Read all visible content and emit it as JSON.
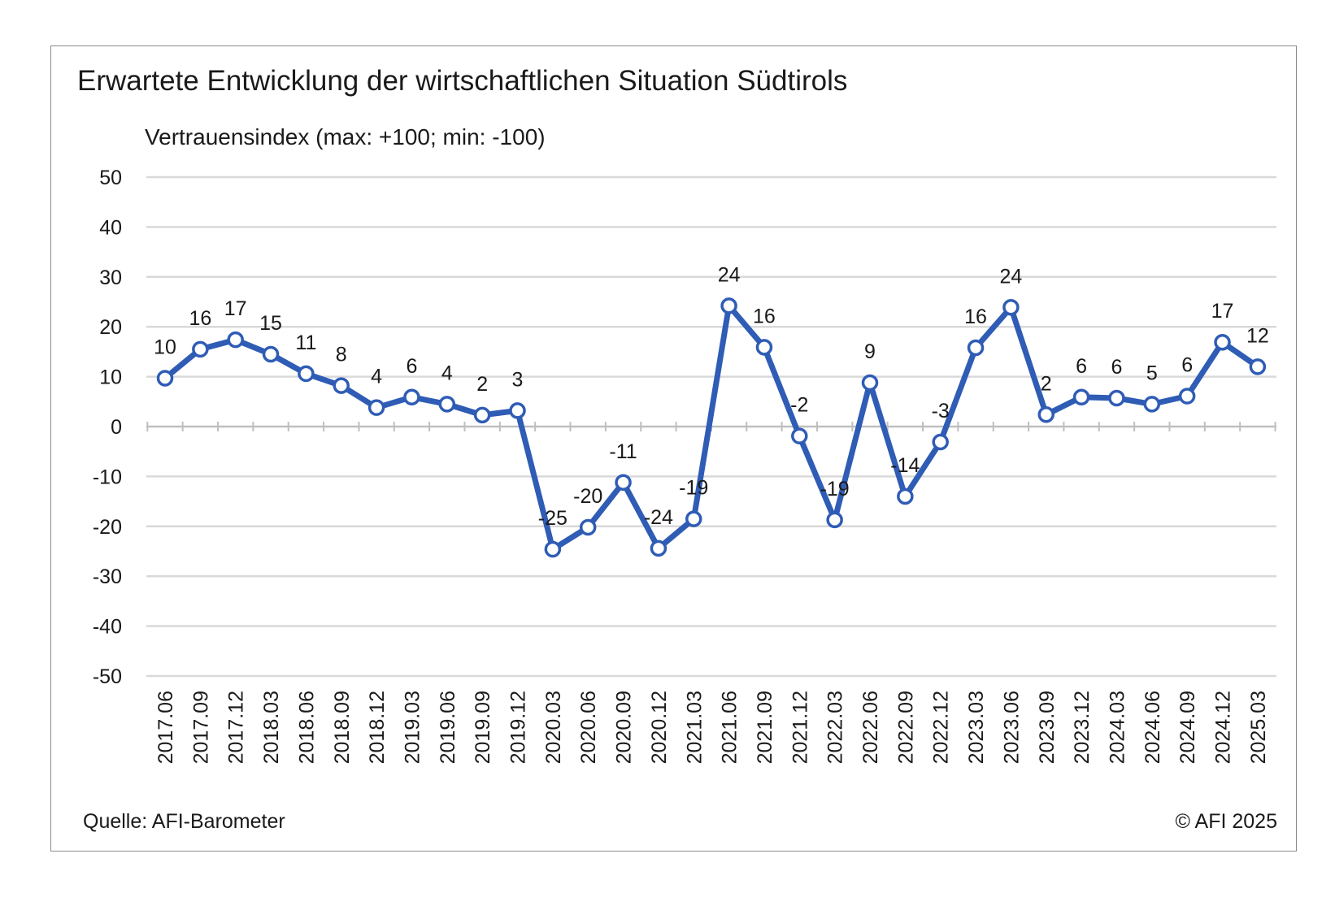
{
  "title": "Erwartete Entwicklung der wirtschaftlichen Situation Südtirols",
  "source": "Quelle: AFI-Barometer",
  "copyright": "© AFI 2025",
  "colors": {
    "line": "#2f5cb5",
    "grid": "#d9d9d9",
    "axis": "#bfbfbf",
    "marker_fill": "#ffffff"
  },
  "chart_data": {
    "type": "line",
    "title": "Erwartete Entwicklung der wirtschaftlichen Situation Südtirols",
    "ylabel": "Vertrauensindex (max: +100; min: -100)",
    "xlabel": "",
    "ylim": [
      -50,
      50
    ],
    "yticks": [
      50,
      40,
      30,
      20,
      10,
      0,
      -10,
      -20,
      -30,
      -40,
      -50
    ],
    "grid": true,
    "legend": "none",
    "categories": [
      "2017.06",
      "2017.09",
      "2017.12",
      "2018.03",
      "2018.06",
      "2018.09",
      "2018.12",
      "2019.03",
      "2019.06",
      "2019.09",
      "2019.12",
      "2020.03",
      "2020.06",
      "2020.09",
      "2020.12",
      "2021.03",
      "2021.06",
      "2021.09",
      "2021.12",
      "2022.03",
      "2022.06",
      "2022.09",
      "2022.12",
      "2023.03",
      "2023.06",
      "2023.09",
      "2023.12",
      "2024.03",
      "2024.06",
      "2024.09",
      "2024.12",
      "2025.03"
    ],
    "values": [
      9.7,
      15.5,
      17.4,
      14.5,
      10.6,
      8.2,
      3.8,
      5.9,
      4.5,
      2.3,
      3.2,
      -24.6,
      -20.2,
      -11.2,
      -24.4,
      -18.5,
      24.2,
      15.9,
      -1.9,
      -18.7,
      8.8,
      -14.0,
      -3.1,
      15.8,
      23.9,
      2.4,
      5.9,
      5.7,
      4.5,
      6.1,
      16.9,
      12.0
    ],
    "labels": [
      "10",
      "16",
      "17",
      "15",
      "11",
      "8",
      "4",
      "6",
      "4",
      "2",
      "3",
      "-25",
      "-20",
      "-11",
      "-24",
      "-19",
      "24",
      "16",
      "-2",
      "-19",
      "9",
      "-14",
      "-3",
      "16",
      "24",
      "2",
      "6",
      "6",
      "5",
      "6",
      "17",
      "12"
    ]
  }
}
